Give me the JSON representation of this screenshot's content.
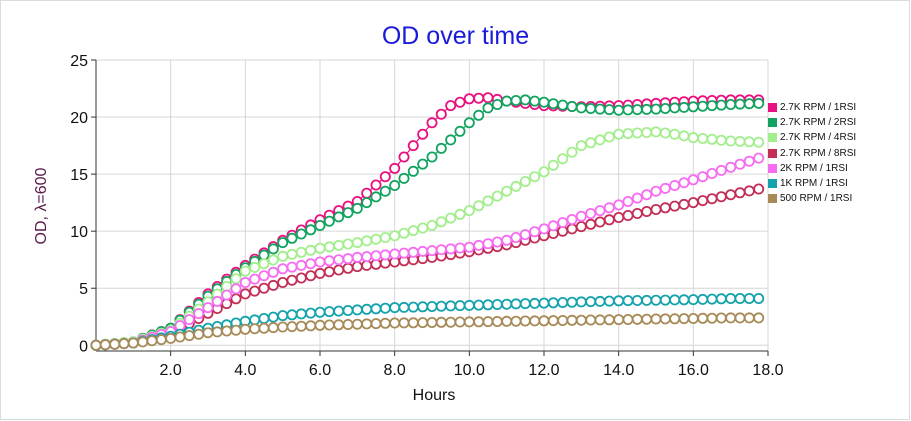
{
  "chart_data": {
    "type": "scatter",
    "title": "OD over time",
    "xlabel": "Hours",
    "ylabel": "OD, λ=600",
    "xlim": [
      0,
      18
    ],
    "ylim": [
      -0.5,
      25
    ],
    "xticks": [
      "2.0",
      "4.0",
      "6.0",
      "8.0",
      "10.0",
      "12.0",
      "14.0",
      "16.0",
      "18.0"
    ],
    "yticks": [
      "0",
      "5",
      "10",
      "15",
      "20",
      "25"
    ],
    "grid": true,
    "legend_position": "right",
    "series": [
      {
        "name": "2.7K RPM / 1RSI",
        "color": "#e8117f",
        "x": [
          0,
          1,
          2,
          3,
          3.5,
          4,
          5,
          6,
          7,
          8,
          8.5,
          9,
          9.5,
          10,
          10.5,
          11,
          12,
          13,
          14,
          15,
          16,
          17,
          17.75
        ],
        "y": [
          0,
          0.3,
          1.5,
          4.5,
          5.8,
          7,
          9.2,
          11,
          12.6,
          15.5,
          17.5,
          19.5,
          21,
          21.6,
          21.7,
          21.4,
          21.0,
          20.9,
          21.0,
          21.2,
          21.4,
          21.5,
          21.5
        ]
      },
      {
        "name": "2.7K RPM / 2RSI",
        "color": "#11a35f",
        "x": [
          0,
          1,
          2,
          3,
          3.5,
          4,
          5,
          6,
          7,
          8,
          9,
          10,
          10.5,
          11,
          11.5,
          12,
          13,
          14,
          15,
          16,
          17,
          17.75
        ],
        "y": [
          0,
          0.3,
          1.5,
          4.3,
          5.6,
          6.8,
          9.0,
          10.5,
          12.0,
          14.0,
          16.5,
          19.5,
          20.8,
          21.4,
          21.5,
          21.3,
          20.8,
          20.6,
          20.7,
          20.9,
          21.1,
          21.2
        ]
      },
      {
        "name": "2.7K RPM / 4RSI",
        "color": "#a3ee8c",
        "x": [
          0,
          1,
          2,
          3,
          4,
          5,
          6,
          7,
          8,
          9,
          10,
          11,
          12,
          13,
          14,
          15,
          15.5,
          16,
          17,
          17.75
        ],
        "y": [
          0,
          0.3,
          1.3,
          3.8,
          6.5,
          7.8,
          8.5,
          9.0,
          9.6,
          10.5,
          11.8,
          13.5,
          15.2,
          17.5,
          18.5,
          18.7,
          18.5,
          18.2,
          17.9,
          17.8
        ]
      },
      {
        "name": "2.7K RPM / 8RSI",
        "color": "#c22e55",
        "x": [
          0,
          1,
          2,
          3,
          4,
          5,
          6,
          7,
          8,
          9,
          10,
          11,
          12,
          13,
          14,
          15,
          16,
          17,
          17.75
        ],
        "y": [
          0,
          0.2,
          1.0,
          2.8,
          4.5,
          5.5,
          6.3,
          6.9,
          7.3,
          7.7,
          8.2,
          8.8,
          9.6,
          10.4,
          11.2,
          11.9,
          12.5,
          13.2,
          13.7
        ]
      },
      {
        "name": "2K RPM / 1RSI",
        "color": "#f66cf2",
        "x": [
          0,
          1,
          2,
          3,
          4,
          5,
          6,
          7,
          8,
          9,
          10,
          11,
          12,
          13,
          14,
          15,
          16,
          17,
          17.75
        ],
        "y": [
          0,
          0.2,
          1.2,
          3.3,
          5.5,
          6.7,
          7.3,
          7.7,
          8.0,
          8.3,
          8.6,
          9.2,
          10.2,
          11.3,
          12.3,
          13.5,
          14.5,
          15.6,
          16.4
        ]
      },
      {
        "name": "1K RPM / 1RSI",
        "color": "#14a2ac",
        "x": [
          0,
          1,
          2,
          3,
          4,
          5,
          6,
          7,
          8,
          9,
          10,
          11,
          12,
          13,
          14,
          15,
          16,
          17,
          17.75
        ],
        "y": [
          0,
          0.2,
          0.8,
          1.5,
          2.1,
          2.6,
          2.9,
          3.1,
          3.3,
          3.4,
          3.5,
          3.6,
          3.7,
          3.8,
          3.9,
          3.95,
          4.0,
          4.1,
          4.1
        ]
      },
      {
        "name": "500 RPM / 1RSI",
        "color": "#a68a57",
        "x": [
          0,
          1,
          2,
          3,
          4,
          5,
          6,
          7,
          8,
          9,
          10,
          11,
          12,
          13,
          14,
          15,
          16,
          17,
          17.75
        ],
        "y": [
          0,
          0.2,
          0.6,
          1.1,
          1.4,
          1.6,
          1.75,
          1.85,
          1.95,
          2.0,
          2.05,
          2.1,
          2.15,
          2.2,
          2.25,
          2.3,
          2.35,
          2.4,
          2.4
        ]
      }
    ]
  }
}
